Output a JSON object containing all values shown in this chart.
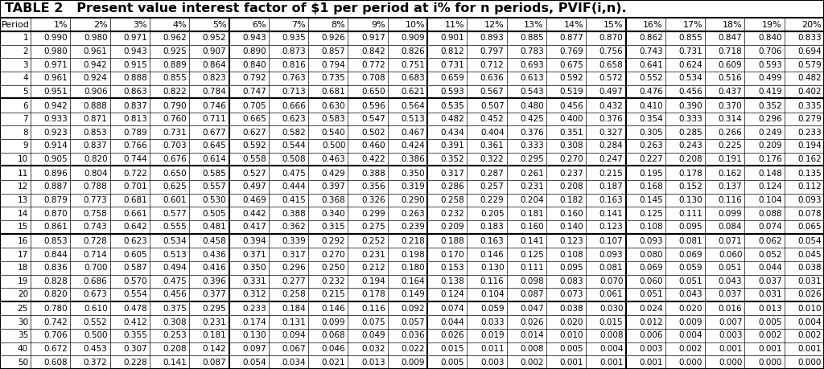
{
  "title": "TABLE 2   Present value interest factor of $1 per period at i% for n periods, PVIF(i,n).",
  "columns": [
    "Period",
    "1%",
    "2%",
    "3%",
    "4%",
    "5%",
    "6%",
    "7%",
    "8%",
    "9%",
    "10%",
    "11%",
    "12%",
    "13%",
    "14%",
    "15%",
    "16%",
    "17%",
    "18%",
    "19%",
    "20%"
  ],
  "rows": [
    [
      1,
      0.99,
      0.98,
      0.971,
      0.962,
      0.952,
      0.943,
      0.935,
      0.926,
      0.917,
      0.909,
      0.901,
      0.893,
      0.885,
      0.877,
      0.87,
      0.862,
      0.855,
      0.847,
      0.84,
      0.833
    ],
    [
      2,
      0.98,
      0.961,
      0.943,
      0.925,
      0.907,
      0.89,
      0.873,
      0.857,
      0.842,
      0.826,
      0.812,
      0.797,
      0.783,
      0.769,
      0.756,
      0.743,
      0.731,
      0.718,
      0.706,
      0.694
    ],
    [
      3,
      0.971,
      0.942,
      0.915,
      0.889,
      0.864,
      0.84,
      0.816,
      0.794,
      0.772,
      0.751,
      0.731,
      0.712,
      0.693,
      0.675,
      0.658,
      0.641,
      0.624,
      0.609,
      0.593,
      0.579
    ],
    [
      4,
      0.961,
      0.924,
      0.888,
      0.855,
      0.823,
      0.792,
      0.763,
      0.735,
      0.708,
      0.683,
      0.659,
      0.636,
      0.613,
      0.592,
      0.572,
      0.552,
      0.534,
      0.516,
      0.499,
      0.482
    ],
    [
      5,
      0.951,
      0.906,
      0.863,
      0.822,
      0.784,
      0.747,
      0.713,
      0.681,
      0.65,
      0.621,
      0.593,
      0.567,
      0.543,
      0.519,
      0.497,
      0.476,
      0.456,
      0.437,
      0.419,
      0.402
    ],
    [
      6,
      0.942,
      0.888,
      0.837,
      0.79,
      0.746,
      0.705,
      0.666,
      0.63,
      0.596,
      0.564,
      0.535,
      0.507,
      0.48,
      0.456,
      0.432,
      0.41,
      0.39,
      0.37,
      0.352,
      0.335
    ],
    [
      7,
      0.933,
      0.871,
      0.813,
      0.76,
      0.711,
      0.665,
      0.623,
      0.583,
      0.547,
      0.513,
      0.482,
      0.452,
      0.425,
      0.4,
      0.376,
      0.354,
      0.333,
      0.314,
      0.296,
      0.279
    ],
    [
      8,
      0.923,
      0.853,
      0.789,
      0.731,
      0.677,
      0.627,
      0.582,
      0.54,
      0.502,
      0.467,
      0.434,
      0.404,
      0.376,
      0.351,
      0.327,
      0.305,
      0.285,
      0.266,
      0.249,
      0.233
    ],
    [
      9,
      0.914,
      0.837,
      0.766,
      0.703,
      0.645,
      0.592,
      0.544,
      0.5,
      0.46,
      0.424,
      0.391,
      0.361,
      0.333,
      0.308,
      0.284,
      0.263,
      0.243,
      0.225,
      0.209,
      0.194
    ],
    [
      10,
      0.905,
      0.82,
      0.744,
      0.676,
      0.614,
      0.558,
      0.508,
      0.463,
      0.422,
      0.386,
      0.352,
      0.322,
      0.295,
      0.27,
      0.247,
      0.227,
      0.208,
      0.191,
      0.176,
      0.162
    ],
    [
      11,
      0.896,
      0.804,
      0.722,
      0.65,
      0.585,
      0.527,
      0.475,
      0.429,
      0.388,
      0.35,
      0.317,
      0.287,
      0.261,
      0.237,
      0.215,
      0.195,
      0.178,
      0.162,
      0.148,
      0.135
    ],
    [
      12,
      0.887,
      0.788,
      0.701,
      0.625,
      0.557,
      0.497,
      0.444,
      0.397,
      0.356,
      0.319,
      0.286,
      0.257,
      0.231,
      0.208,
      0.187,
      0.168,
      0.152,
      0.137,
      0.124,
      0.112
    ],
    [
      13,
      0.879,
      0.773,
      0.681,
      0.601,
      0.53,
      0.469,
      0.415,
      0.368,
      0.326,
      0.29,
      0.258,
      0.229,
      0.204,
      0.182,
      0.163,
      0.145,
      0.13,
      0.116,
      0.104,
      0.093
    ],
    [
      14,
      0.87,
      0.758,
      0.661,
      0.577,
      0.505,
      0.442,
      0.388,
      0.34,
      0.299,
      0.263,
      0.232,
      0.205,
      0.181,
      0.16,
      0.141,
      0.125,
      0.111,
      0.099,
      0.088,
      0.078
    ],
    [
      15,
      0.861,
      0.743,
      0.642,
      0.555,
      0.481,
      0.417,
      0.362,
      0.315,
      0.275,
      0.239,
      0.209,
      0.183,
      0.16,
      0.14,
      0.123,
      0.108,
      0.095,
      0.084,
      0.074,
      0.065
    ],
    [
      16,
      0.853,
      0.728,
      0.623,
      0.534,
      0.458,
      0.394,
      0.339,
      0.292,
      0.252,
      0.218,
      0.188,
      0.163,
      0.141,
      0.123,
      0.107,
      0.093,
      0.081,
      0.071,
      0.062,
      0.054
    ],
    [
      17,
      0.844,
      0.714,
      0.605,
      0.513,
      0.436,
      0.371,
      0.317,
      0.27,
      0.231,
      0.198,
      0.17,
      0.146,
      0.125,
      0.108,
      0.093,
      0.08,
      0.069,
      0.06,
      0.052,
      0.045
    ],
    [
      18,
      0.836,
      0.7,
      0.587,
      0.494,
      0.416,
      0.35,
      0.296,
      0.25,
      0.212,
      0.18,
      0.153,
      0.13,
      0.111,
      0.095,
      0.081,
      0.069,
      0.059,
      0.051,
      0.044,
      0.038
    ],
    [
      19,
      0.828,
      0.686,
      0.57,
      0.475,
      0.396,
      0.331,
      0.277,
      0.232,
      0.194,
      0.164,
      0.138,
      0.116,
      0.098,
      0.083,
      0.07,
      0.06,
      0.051,
      0.043,
      0.037,
      0.031
    ],
    [
      20,
      0.82,
      0.673,
      0.554,
      0.456,
      0.377,
      0.312,
      0.258,
      0.215,
      0.178,
      0.149,
      0.124,
      0.104,
      0.087,
      0.073,
      0.061,
      0.051,
      0.043,
      0.037,
      0.031,
      0.026
    ],
    [
      25,
      0.78,
      0.61,
      0.478,
      0.375,
      0.295,
      0.233,
      0.184,
      0.146,
      0.116,
      0.092,
      0.074,
      0.059,
      0.047,
      0.038,
      0.03,
      0.024,
      0.02,
      0.016,
      0.013,
      0.01
    ],
    [
      30,
      0.742,
      0.552,
      0.412,
      0.308,
      0.231,
      0.174,
      0.131,
      0.099,
      0.075,
      0.057,
      0.044,
      0.033,
      0.026,
      0.02,
      0.015,
      0.012,
      0.009,
      0.007,
      0.005,
      0.004
    ],
    [
      35,
      0.706,
      0.5,
      0.355,
      0.253,
      0.181,
      0.13,
      0.094,
      0.068,
      0.049,
      0.036,
      0.026,
      0.019,
      0.014,
      0.01,
      0.008,
      0.006,
      0.004,
      0.003,
      0.002,
      0.002
    ],
    [
      40,
      0.672,
      0.453,
      0.307,
      0.208,
      0.142,
      0.097,
      0.067,
      0.046,
      0.032,
      0.022,
      0.015,
      0.011,
      0.008,
      0.005,
      0.004,
      0.003,
      0.002,
      0.001,
      0.001,
      0.001
    ],
    [
      50,
      0.608,
      0.372,
      0.228,
      0.141,
      0.087,
      0.054,
      0.034,
      0.021,
      0.013,
      0.009,
      0.005,
      0.003,
      0.002,
      0.001,
      0.001,
      0.001,
      0.0,
      0.0,
      0.0,
      0.0
    ]
  ],
  "group_separators_after_row_idx": [
    4,
    9,
    14,
    19
  ],
  "col_separator_after_idx": [
    5,
    10,
    15
  ],
  "background_color": "#ffffff",
  "text_color": "#000000",
  "title_fontsize": 11.5,
  "header_fontsize": 8.0,
  "cell_fontsize": 7.5,
  "thin_lw": 0.5,
  "thick_lw": 1.5
}
